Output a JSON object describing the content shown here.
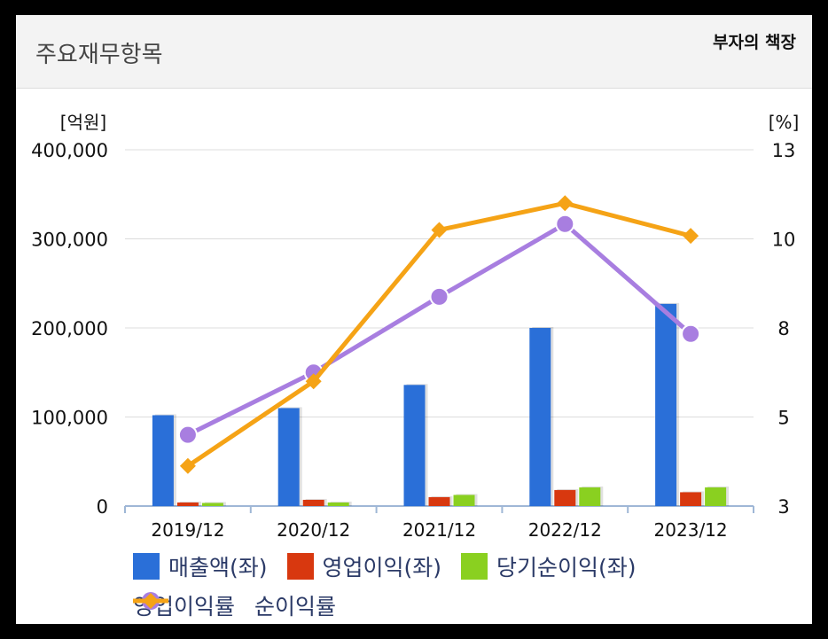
{
  "header": {
    "title": "주요재무항목",
    "brand": "부자의 책장"
  },
  "chart_data": {
    "type": "bar",
    "categories": [
      "2019/12",
      "2020/12",
      "2021/12",
      "2022/12",
      "2023/12"
    ],
    "y_left": {
      "unit": "[억원]",
      "min": 0,
      "max": 400000,
      "ticks": [
        0,
        100000,
        200000,
        300000,
        400000
      ],
      "tick_labels": [
        "0",
        "100,000",
        "200,000",
        "300,000",
        "400,000"
      ]
    },
    "y_right": {
      "unit": "[%]",
      "ticks": [
        3,
        5,
        8,
        10,
        13
      ],
      "tick_labels": [
        "3",
        "5",
        "8",
        "10",
        "13"
      ]
    },
    "bar_series": [
      {
        "name": "매출액(좌)",
        "color": "#2a6fd8",
        "values": [
          102000,
          110000,
          136000,
          200000,
          227000
        ]
      },
      {
        "name": "영업이익(좌)",
        "color": "#d8380f",
        "values": [
          4000,
          7000,
          10000,
          18000,
          15500
        ]
      },
      {
        "name": "당기순이익(좌)",
        "color": "#8ad020",
        "values": [
          3500,
          4000,
          12500,
          21000,
          21000
        ]
      }
    ],
    "line_series": [
      {
        "name": "영업이익률",
        "color": "#a87ee0",
        "marker": "circle",
        "values": [
          4.6,
          6.5,
          8.7,
          10.5,
          7.8
        ]
      },
      {
        "name": "순이익률",
        "color": "#f5a316",
        "marker": "diamond",
        "values": [
          3.9,
          6.2,
          10.3,
          11.2,
          10.1
        ]
      }
    ],
    "grid": true,
    "legend_position": "bottom"
  }
}
